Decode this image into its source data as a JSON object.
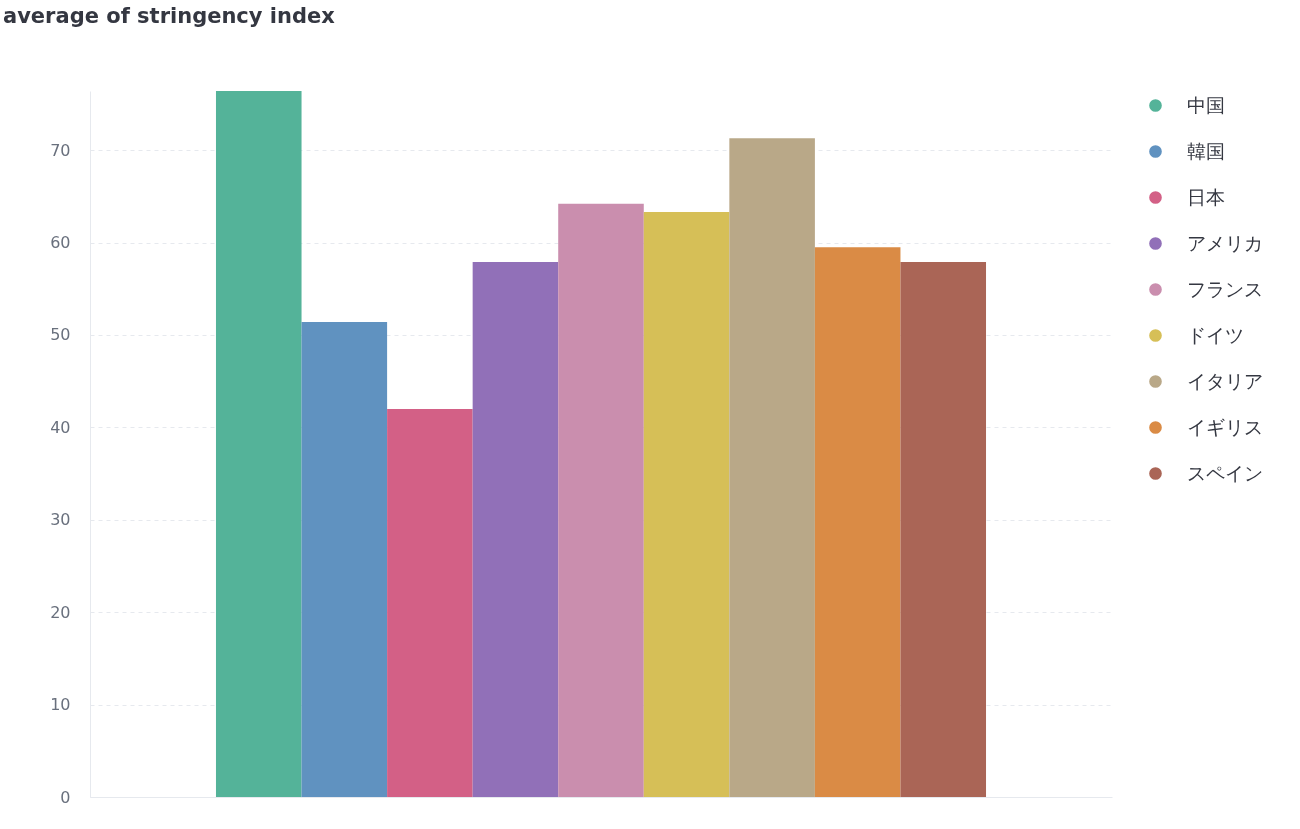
{
  "chart_data": {
    "type": "bar",
    "title": "average of stringency index",
    "categories": [
      null
    ],
    "series": [
      {
        "name": "中国",
        "color": "#54b399",
        "values": [
          76.4
        ]
      },
      {
        "name": "韓国",
        "color": "#6092c0",
        "values": [
          51.4
        ]
      },
      {
        "name": "日本",
        "color": "#d36086",
        "values": [
          42.0
        ]
      },
      {
        "name": "アメリカ",
        "color": "#9170b8",
        "values": [
          57.9
        ]
      },
      {
        "name": "フランス",
        "color": "#ca8eae",
        "values": [
          64.2
        ]
      },
      {
        "name": "ドイツ",
        "color": "#d6bf57",
        "values": [
          63.3
        ]
      },
      {
        "name": "イタリア",
        "color": "#b9a888",
        "values": [
          71.3
        ]
      },
      {
        "name": "イギリス",
        "color": "#da8b45",
        "values": [
          59.5
        ]
      },
      {
        "name": "スペイン",
        "color": "#aa6556",
        "values": [
          57.9
        ]
      }
    ],
    "ylim": [
      0,
      76.4
    ],
    "yticks": [
      0,
      10,
      20,
      30,
      40,
      50,
      60,
      70
    ],
    "grid": "y",
    "legend": "right",
    "tick_labels": "y"
  }
}
